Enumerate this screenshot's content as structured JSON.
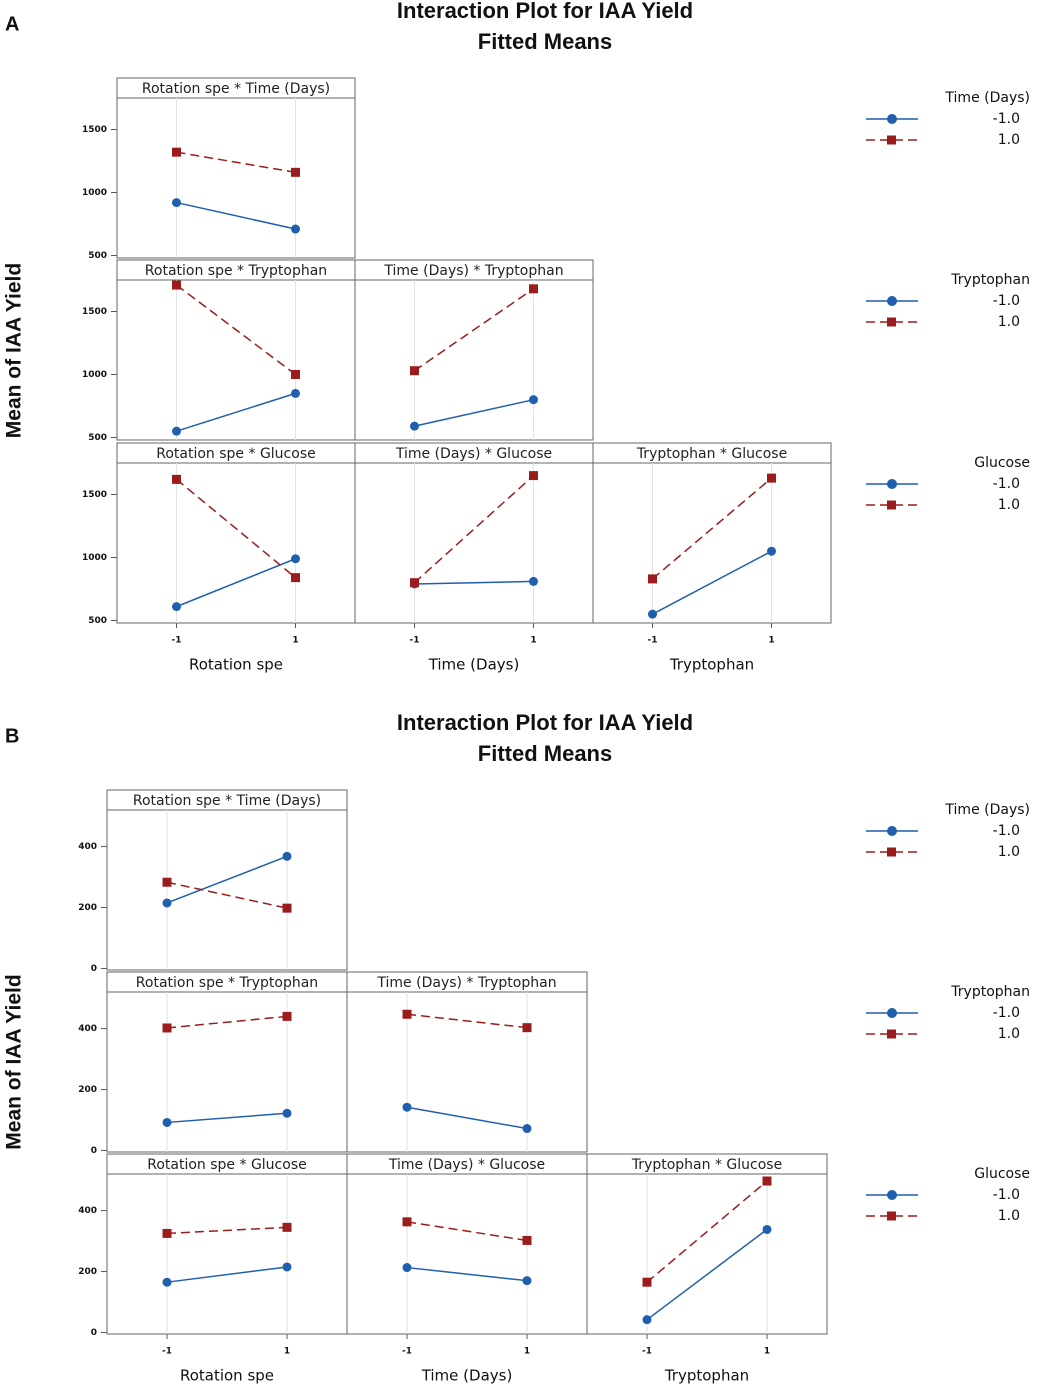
{
  "figures": [
    {
      "label": "A",
      "title": "Interaction Plot for IAA Yield",
      "subtitle": "Fitted Means",
      "y_label": "Mean of IAA Yield",
      "ylim": [
        480,
        1750
      ],
      "yticks": [
        500,
        1000,
        1500
      ],
      "xlim": [
        -2,
        2
      ],
      "xticks": [
        -1,
        1
      ],
      "grid": "x",
      "x_labels": [
        "Rotation spe",
        "Time (Days)",
        "Tryptophan"
      ],
      "styles": [
        {
          "color": "#1f5fad",
          "marker": "circle",
          "line": "solid"
        },
        {
          "color": "#9b1c1c",
          "marker": "square",
          "line": "dashed"
        }
      ],
      "legends": [
        {
          "title": "Time (Days)",
          "entries": [
            "-1.0",
            "1.0"
          ]
        },
        {
          "title": "Tryptophan",
          "entries": [
            "-1.0",
            "1.0"
          ]
        },
        {
          "title": "Glucose",
          "entries": [
            "-1.0",
            "1.0"
          ]
        }
      ],
      "panels": [
        {
          "type": "line",
          "title": "Rotation spe * Time (Days)",
          "series": [
            {
              "values": [
                920,
                710
              ]
            },
            {
              "values": [
                1320,
                1160
              ]
            }
          ]
        },
        {
          "type": "line",
          "title": "Rotation spe * Tryptophan",
          "series": [
            {
              "values": [
                550,
                850
              ]
            },
            {
              "values": [
                1710,
                1000
              ]
            }
          ]
        },
        {
          "type": "line",
          "title": "Time (Days) * Tryptophan",
          "series": [
            {
              "values": [
                590,
                800
              ]
            },
            {
              "values": [
                1030,
                1680
              ]
            }
          ]
        },
        {
          "type": "line",
          "title": "Rotation spe * Glucose",
          "series": [
            {
              "values": [
                610,
                990
              ]
            },
            {
              "values": [
                1620,
                840
              ]
            }
          ]
        },
        {
          "type": "line",
          "title": "Time (Days) * Glucose",
          "series": [
            {
              "values": [
                790,
                810
              ]
            },
            {
              "values": [
                800,
                1650
              ]
            }
          ]
        },
        {
          "type": "line",
          "title": "Tryptophan * Glucose",
          "series": [
            {
              "values": [
                550,
                1050
              ]
            },
            {
              "values": [
                830,
                1630
              ]
            }
          ]
        }
      ]
    },
    {
      "label": "B",
      "title": "Interaction Plot for IAA Yield",
      "subtitle": "Fitted Means",
      "y_label": "Mean of IAA Yield",
      "ylim": [
        -5,
        520
      ],
      "yticks": [
        0,
        200,
        400
      ],
      "xlim": [
        -2,
        2
      ],
      "xticks": [
        -1,
        1
      ],
      "grid": "x",
      "x_labels": [
        "Rotation spe",
        "Time (Days)",
        "Tryptophan"
      ],
      "styles": [
        {
          "color": "#1f5fad",
          "marker": "circle",
          "line": "solid"
        },
        {
          "color": "#9b1c1c",
          "marker": "square",
          "line": "dashed"
        }
      ],
      "legends": [
        {
          "title": "Time (Days)",
          "entries": [
            "-1.0",
            "1.0"
          ]
        },
        {
          "title": "Tryptophan",
          "entries": [
            "-1.0",
            "1.0"
          ]
        },
        {
          "title": "Glucose",
          "entries": [
            "-1.0",
            "1.0"
          ]
        }
      ],
      "panels": [
        {
          "type": "line",
          "title": "Rotation spe * Time (Days)",
          "series": [
            {
              "values": [
                215,
                368
              ]
            },
            {
              "values": [
                283,
                198
              ]
            }
          ]
        },
        {
          "type": "line",
          "title": "Rotation spe * Tryptophan",
          "series": [
            {
              "values": [
                92,
                122
              ]
            },
            {
              "values": [
                402,
                440
              ]
            }
          ]
        },
        {
          "type": "line",
          "title": "Time (Days) * Tryptophan",
          "series": [
            {
              "values": [
                142,
                72
              ]
            },
            {
              "values": [
                447,
                403
              ]
            }
          ]
        },
        {
          "type": "line",
          "title": "Rotation spe * Glucose",
          "series": [
            {
              "values": [
                165,
                215
              ]
            },
            {
              "values": [
                325,
                345
              ]
            }
          ]
        },
        {
          "type": "line",
          "title": "Time (Days) * Glucose",
          "series": [
            {
              "values": [
                213,
                170
              ]
            },
            {
              "values": [
                363,
                302
              ]
            }
          ]
        },
        {
          "type": "line",
          "title": "Tryptophan * Glucose",
          "series": [
            {
              "values": [
                42,
                338
              ]
            },
            {
              "values": [
                165,
                497
              ]
            }
          ]
        }
      ]
    }
  ]
}
